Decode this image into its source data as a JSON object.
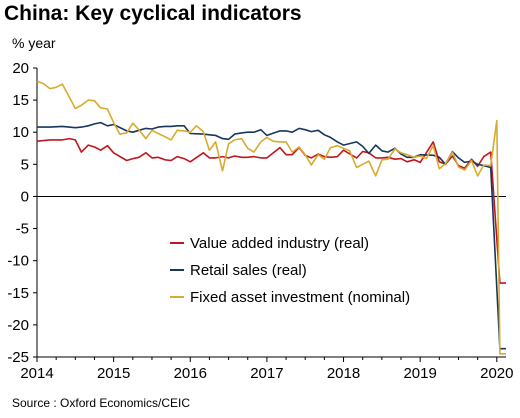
{
  "chart_data": {
    "type": "line",
    "title": "China: Key cyclical indicators",
    "ylabel": "% year",
    "source": "Source : Oxford Economics/CEIC",
    "ylim": [
      -25,
      20
    ],
    "xlim": [
      2014.0,
      2020.12
    ],
    "yticks": [
      "20",
      "15",
      "10",
      "5",
      "0",
      "-5",
      "-10",
      "-15",
      "-20",
      "-25"
    ],
    "xticks": [
      "2014",
      "2015",
      "2016",
      "2017",
      "2018",
      "2019",
      "2020"
    ],
    "legend_position": "center",
    "grid": false,
    "series": [
      {
        "name": "Value added industry (real)",
        "color": "#c0171e",
        "points": [
          [
            2014.0,
            8.6
          ],
          [
            2014.17,
            8.8
          ],
          [
            2014.33,
            8.8
          ],
          [
            2014.42,
            9.0
          ],
          [
            2014.5,
            8.8
          ],
          [
            2014.58,
            6.9
          ],
          [
            2014.67,
            8.0
          ],
          [
            2014.75,
            7.7
          ],
          [
            2014.83,
            7.2
          ],
          [
            2014.92,
            7.9
          ],
          [
            2015.0,
            6.8
          ],
          [
            2015.17,
            5.6
          ],
          [
            2015.25,
            5.9
          ],
          [
            2015.33,
            6.1
          ],
          [
            2015.42,
            6.8
          ],
          [
            2015.5,
            6.0
          ],
          [
            2015.58,
            6.1
          ],
          [
            2015.67,
            5.7
          ],
          [
            2015.75,
            5.6
          ],
          [
            2015.83,
            6.2
          ],
          [
            2015.92,
            5.9
          ],
          [
            2016.0,
            5.4
          ],
          [
            2016.17,
            6.8
          ],
          [
            2016.25,
            6.0
          ],
          [
            2016.33,
            6.0
          ],
          [
            2016.42,
            6.2
          ],
          [
            2016.5,
            6.0
          ],
          [
            2016.58,
            6.3
          ],
          [
            2016.67,
            6.1
          ],
          [
            2016.75,
            6.1
          ],
          [
            2016.83,
            6.2
          ],
          [
            2016.92,
            6.0
          ],
          [
            2017.0,
            6.0
          ],
          [
            2017.17,
            7.6
          ],
          [
            2017.25,
            6.5
          ],
          [
            2017.33,
            6.5
          ],
          [
            2017.42,
            7.6
          ],
          [
            2017.5,
            6.4
          ],
          [
            2017.58,
            6.0
          ],
          [
            2017.67,
            6.6
          ],
          [
            2017.75,
            6.2
          ],
          [
            2017.83,
            6.1
          ],
          [
            2017.92,
            6.2
          ],
          [
            2018.0,
            7.2
          ],
          [
            2018.17,
            6.0
          ],
          [
            2018.25,
            7.0
          ],
          [
            2018.33,
            6.8
          ],
          [
            2018.42,
            6.0
          ],
          [
            2018.5,
            6.0
          ],
          [
            2018.58,
            6.1
          ],
          [
            2018.67,
            5.8
          ],
          [
            2018.75,
            5.9
          ],
          [
            2018.83,
            5.4
          ],
          [
            2018.92,
            5.7
          ],
          [
            2019.0,
            5.3
          ],
          [
            2019.17,
            8.5
          ],
          [
            2019.25,
            5.4
          ],
          [
            2019.33,
            5.0
          ],
          [
            2019.42,
            6.3
          ],
          [
            2019.5,
            4.8
          ],
          [
            2019.58,
            4.4
          ],
          [
            2019.67,
            5.8
          ],
          [
            2019.75,
            4.7
          ],
          [
            2019.83,
            6.2
          ],
          [
            2019.92,
            6.9
          ],
          [
            2020.04,
            -13.5
          ],
          [
            2020.12,
            -13.5
          ]
        ]
      },
      {
        "name": "Retail sales (real)",
        "color": "#17375e",
        "points": [
          [
            2014.0,
            10.8
          ],
          [
            2014.17,
            10.8
          ],
          [
            2014.33,
            10.9
          ],
          [
            2014.42,
            10.8
          ],
          [
            2014.5,
            10.7
          ],
          [
            2014.58,
            10.8
          ],
          [
            2014.67,
            11.0
          ],
          [
            2014.75,
            11.3
          ],
          [
            2014.83,
            11.5
          ],
          [
            2014.92,
            11.0
          ],
          [
            2015.0,
            11.2
          ],
          [
            2015.17,
            10.2
          ],
          [
            2015.25,
            10.0
          ],
          [
            2015.33,
            10.3
          ],
          [
            2015.42,
            10.6
          ],
          [
            2015.5,
            10.5
          ],
          [
            2015.58,
            10.8
          ],
          [
            2015.67,
            10.9
          ],
          [
            2015.75,
            10.9
          ],
          [
            2015.83,
            11.0
          ],
          [
            2015.92,
            11.0
          ],
          [
            2016.0,
            9.8
          ],
          [
            2016.17,
            9.7
          ],
          [
            2016.25,
            9.6
          ],
          [
            2016.33,
            9.5
          ],
          [
            2016.42,
            9.0
          ],
          [
            2016.5,
            8.9
          ],
          [
            2016.58,
            9.7
          ],
          [
            2016.67,
            9.9
          ],
          [
            2016.75,
            10.0
          ],
          [
            2016.83,
            10.0
          ],
          [
            2016.92,
            10.4
          ],
          [
            2017.0,
            9.5
          ],
          [
            2017.17,
            10.2
          ],
          [
            2017.25,
            10.2
          ],
          [
            2017.33,
            10.0
          ],
          [
            2017.42,
            10.6
          ],
          [
            2017.5,
            10.4
          ],
          [
            2017.58,
            10.1
          ],
          [
            2017.67,
            10.3
          ],
          [
            2017.75,
            9.6
          ],
          [
            2017.83,
            9.2
          ],
          [
            2017.92,
            8.5
          ],
          [
            2018.0,
            8.0
          ],
          [
            2018.17,
            8.5
          ],
          [
            2018.25,
            7.8
          ],
          [
            2018.33,
            6.7
          ],
          [
            2018.42,
            8.0
          ],
          [
            2018.5,
            7.1
          ],
          [
            2018.58,
            6.9
          ],
          [
            2018.67,
            7.5
          ],
          [
            2018.75,
            6.6
          ],
          [
            2018.83,
            6.1
          ],
          [
            2018.92,
            6.1
          ],
          [
            2019.0,
            6.5
          ],
          [
            2019.17,
            6.4
          ],
          [
            2019.25,
            6.1
          ],
          [
            2019.33,
            5.0
          ],
          [
            2019.42,
            7.0
          ],
          [
            2019.5,
            6.0
          ],
          [
            2019.58,
            5.3
          ],
          [
            2019.67,
            5.5
          ],
          [
            2019.75,
            5.0
          ],
          [
            2019.83,
            4.8
          ],
          [
            2019.92,
            4.5
          ],
          [
            2020.04,
            -23.7
          ],
          [
            2020.12,
            -23.7
          ]
        ]
      },
      {
        "name": "Fixed asset investment (nominal)",
        "color": "#d8aa2e",
        "points": [
          [
            2014.0,
            17.9
          ],
          [
            2014.08,
            17.6
          ],
          [
            2014.17,
            16.8
          ],
          [
            2014.25,
            17.0
          ],
          [
            2014.33,
            17.5
          ],
          [
            2014.42,
            15.5
          ],
          [
            2014.5,
            13.7
          ],
          [
            2014.58,
            14.2
          ],
          [
            2014.67,
            15.0
          ],
          [
            2014.75,
            14.9
          ],
          [
            2014.83,
            13.8
          ],
          [
            2014.92,
            13.6
          ],
          [
            2015.0,
            11.5
          ],
          [
            2015.08,
            9.7
          ],
          [
            2015.17,
            9.9
          ],
          [
            2015.25,
            11.4
          ],
          [
            2015.33,
            10.4
          ],
          [
            2015.42,
            9.0
          ],
          [
            2015.5,
            10.3
          ],
          [
            2015.58,
            9.8
          ],
          [
            2015.67,
            9.3
          ],
          [
            2015.75,
            8.8
          ],
          [
            2015.83,
            10.3
          ],
          [
            2015.92,
            10.2
          ],
          [
            2016.0,
            10.0
          ],
          [
            2016.08,
            11.0
          ],
          [
            2016.17,
            10.1
          ],
          [
            2016.25,
            7.2
          ],
          [
            2016.33,
            8.5
          ],
          [
            2016.42,
            4.0
          ],
          [
            2016.5,
            8.2
          ],
          [
            2016.58,
            8.8
          ],
          [
            2016.67,
            9.0
          ],
          [
            2016.75,
            7.5
          ],
          [
            2016.83,
            6.9
          ],
          [
            2016.92,
            8.5
          ],
          [
            2017.0,
            9.2
          ],
          [
            2017.08,
            8.6
          ],
          [
            2017.17,
            8.5
          ],
          [
            2017.25,
            8.5
          ],
          [
            2017.33,
            6.9
          ],
          [
            2017.42,
            7.7
          ],
          [
            2017.5,
            6.5
          ],
          [
            2017.58,
            4.9
          ],
          [
            2017.67,
            6.5
          ],
          [
            2017.75,
            5.8
          ],
          [
            2017.83,
            7.6
          ],
          [
            2017.92,
            7.9
          ],
          [
            2018.0,
            7.5
          ],
          [
            2018.08,
            7.1
          ],
          [
            2018.17,
            4.5
          ],
          [
            2018.25,
            5.0
          ],
          [
            2018.33,
            5.5
          ],
          [
            2018.42,
            3.2
          ],
          [
            2018.5,
            5.7
          ],
          [
            2018.58,
            5.8
          ],
          [
            2018.67,
            7.4
          ],
          [
            2018.75,
            6.8
          ],
          [
            2018.83,
            6.5
          ],
          [
            2018.92,
            6.1
          ],
          [
            2019.0,
            6.3
          ],
          [
            2019.08,
            5.9
          ],
          [
            2019.17,
            7.9
          ],
          [
            2019.25,
            4.3
          ],
          [
            2019.33,
            5.1
          ],
          [
            2019.42,
            6.9
          ],
          [
            2019.5,
            4.6
          ],
          [
            2019.58,
            4.1
          ],
          [
            2019.67,
            5.6
          ],
          [
            2019.75,
            3.2
          ],
          [
            2019.83,
            4.9
          ],
          [
            2019.92,
            4.8
          ],
          [
            2020.0,
            11.8
          ],
          [
            2020.04,
            -24.5
          ],
          [
            2020.12,
            -24.5
          ]
        ]
      }
    ]
  }
}
